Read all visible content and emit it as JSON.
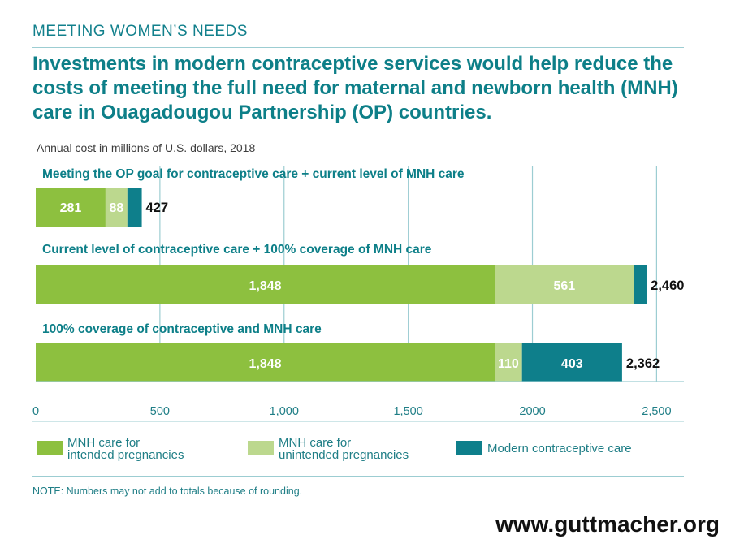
{
  "header": {
    "kicker": "MEETING WOMEN’S NEEDS",
    "headline": "Investments in modern contraceptive services would help reduce the costs of meeting the full need for maternal and newborn health (MNH) care in Ouagadougou Partnership (OP) countries.",
    "units": "Annual cost in millions of U.S. dollars, 2018"
  },
  "colors": {
    "mnh_intended": "#8dc03f",
    "mnh_unintended": "#bcd88e",
    "contraceptive": "#0e7f8b",
    "accent": "#0d7f88"
  },
  "chart_data": {
    "type": "bar",
    "orientation": "horizontal",
    "stacked": true,
    "categories": [
      "Meeting the OP goal for contraceptive care + current level of MNH care",
      "Current level of contraceptive care + 100% coverage of MNH care",
      "100% coverage of contraceptive and MNH care"
    ],
    "series": [
      {
        "name": "MNH care for intended pregnancies",
        "values": [
          281,
          1848,
          1848
        ],
        "labels": [
          "281",
          "1,848",
          "1,848"
        ]
      },
      {
        "name": "MNH care for unintended pregnancies",
        "values": [
          88,
          561,
          110
        ],
        "labels": [
          "88",
          "561",
          "110"
        ]
      },
      {
        "name": "Modern contraceptive care",
        "values": [
          58,
          51,
          403
        ],
        "labels": [
          "",
          "",
          "403"
        ]
      }
    ],
    "totals": [
      427,
      2460,
      2362
    ],
    "total_labels": [
      "427",
      "2,460",
      "2,362"
    ],
    "xlim": [
      0,
      2600
    ],
    "xticks": [
      0,
      500,
      1000,
      1500,
      2000,
      2500
    ],
    "xtick_labels": [
      "0",
      "500",
      "1,000",
      "1,500",
      "2000",
      "2,500"
    ],
    "grid": true
  },
  "legend": [
    {
      "label": "MNH care for\nintended pregnancies"
    },
    {
      "label": "MNH care for\nunintended pregnancies"
    },
    {
      "label": "Modern contraceptive care"
    }
  ],
  "note": "NOTE: Numbers may not add to totals because of rounding.",
  "source": "www.guttmacher.org"
}
